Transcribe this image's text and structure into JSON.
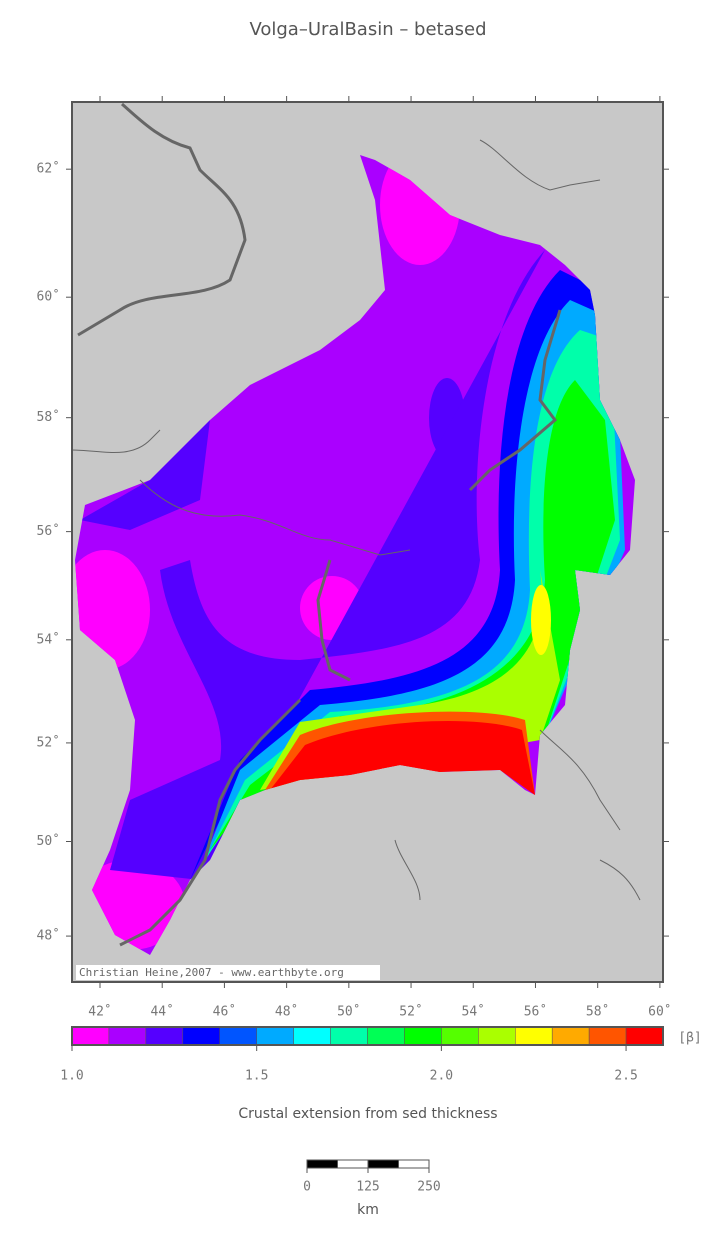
{
  "map": {
    "title": "Volga–UralBasin – betased",
    "projection": "mercator",
    "xlim": [
      41.1,
      60.1
    ],
    "ylim": [
      47,
      63
    ],
    "xticks": [
      {
        "value": 42,
        "label": "42˚"
      },
      {
        "value": 44,
        "label": "44˚"
      },
      {
        "value": 46,
        "label": "46˚"
      },
      {
        "value": 48,
        "label": "48˚"
      },
      {
        "value": 50,
        "label": "50˚"
      },
      {
        "value": 52,
        "label": "52˚"
      },
      {
        "value": 54,
        "label": "54˚"
      },
      {
        "value": 56,
        "label": "56˚"
      },
      {
        "value": 58,
        "label": "58˚"
      },
      {
        "value": 60,
        "label": "60˚"
      }
    ],
    "yticks": [
      {
        "value": 48,
        "label": "48˚"
      },
      {
        "value": 50,
        "label": "50˚"
      },
      {
        "value": 52,
        "label": "52˚"
      },
      {
        "value": 54,
        "label": "54˚"
      },
      {
        "value": 56,
        "label": "56˚"
      },
      {
        "value": 58,
        "label": "58˚"
      },
      {
        "value": 60,
        "label": "60˚"
      },
      {
        "value": 62,
        "label": "62˚"
      }
    ],
    "credit": "Christian Heine,2007 - www.earthbyte.org",
    "colorbar": {
      "range": [
        1.0,
        2.6
      ],
      "colors": [
        "#ff00ff",
        "#aa00ff",
        "#5500ff",
        "#0000ff",
        "#0055ff",
        "#00aaff",
        "#00ffff",
        "#00ffaa",
        "#00ff55",
        "#00ff00",
        "#55ff00",
        "#aaff00",
        "#ffff00",
        "#ffaa00",
        "#ff5500",
        "#ff0000"
      ],
      "ticks": [
        {
          "value": 1.0,
          "label": "1.0"
        },
        1.5,
        {
          "value": 2.0,
          "label": "2.0"
        },
        2.5
      ],
      "unit": "[β]",
      "caption": "Crustal extension from sed thickness"
    },
    "scale_bar": {
      "ticks": [
        0,
        125,
        250
      ],
      "unit": "km"
    }
  }
}
